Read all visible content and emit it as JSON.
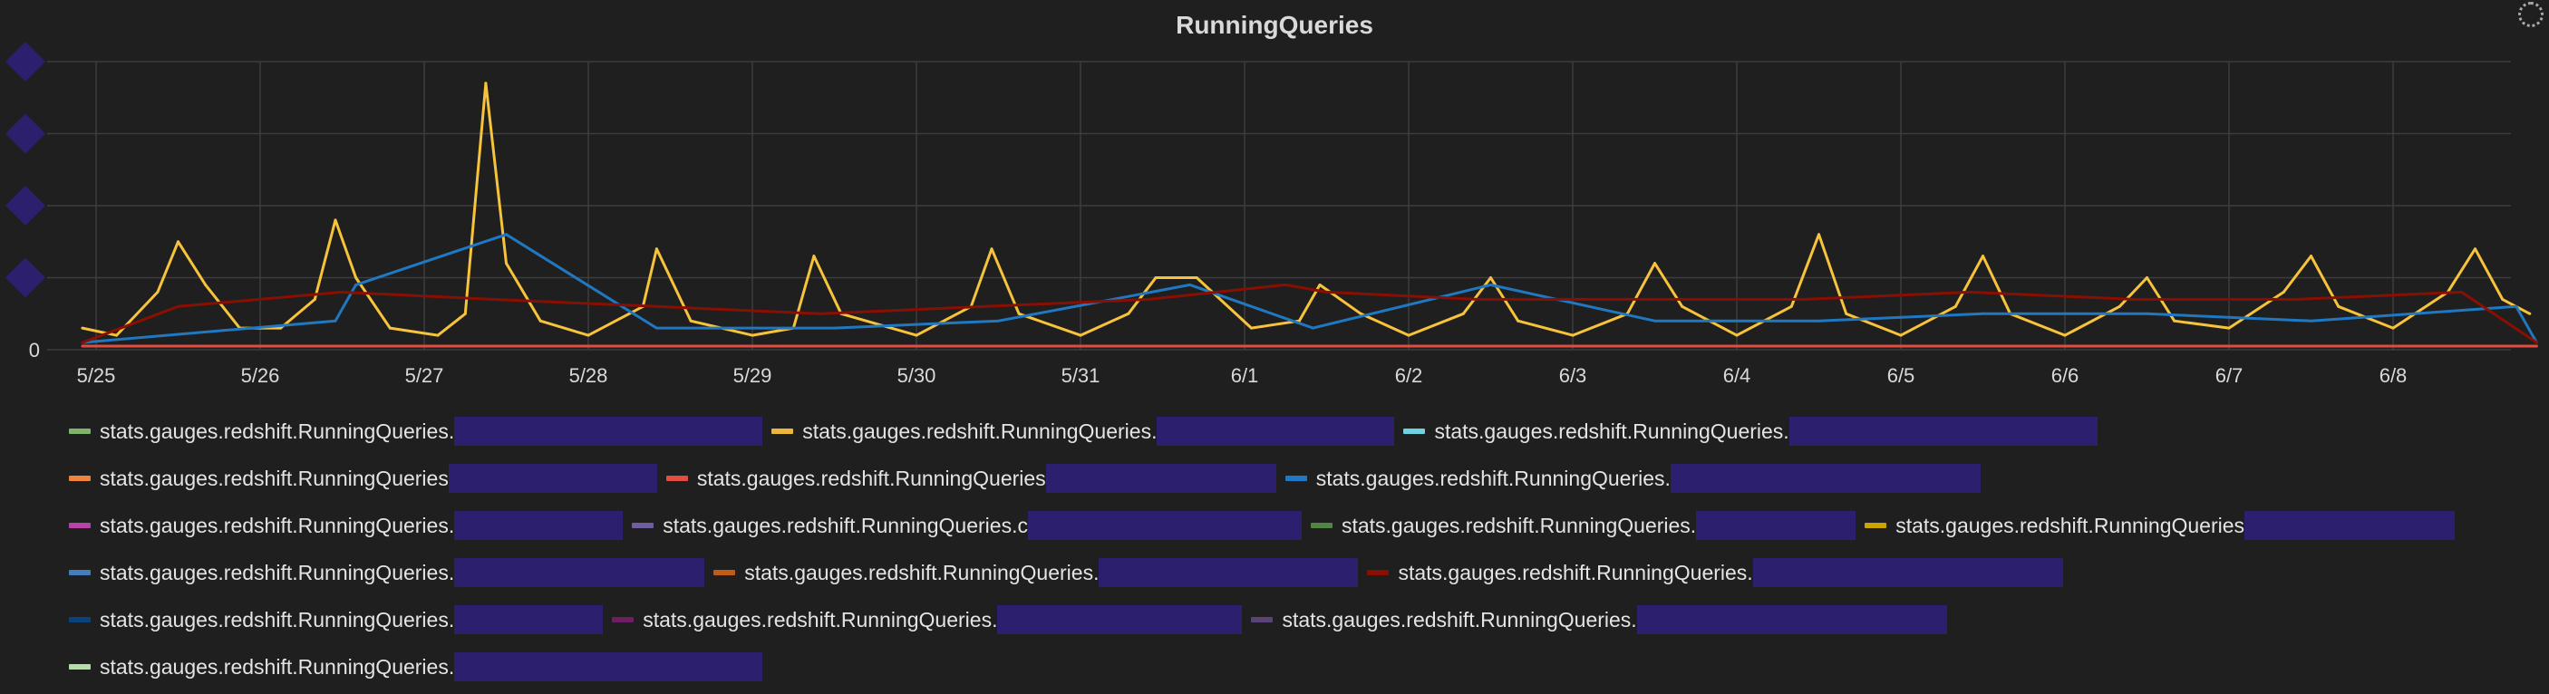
{
  "panel": {
    "title": "RunningQueries"
  },
  "colors": {
    "background": "#1f1f20",
    "grid": "#3d3d3f",
    "redaction": "#2c1f6e"
  },
  "chart_data": {
    "type": "line",
    "title": "RunningQueries",
    "xlabel": "",
    "ylabel": "",
    "x_ticks": [
      "5/25",
      "5/26",
      "5/27",
      "5/28",
      "5/29",
      "5/30",
      "5/31",
      "6/1",
      "6/2",
      "6/3",
      "6/4",
      "6/5",
      "6/6",
      "6/7",
      "6/8"
    ],
    "y_ticks": [
      "0"
    ],
    "ylim": [
      0,
      4
    ],
    "grid": true,
    "legend_position": "bottom",
    "series": [
      {
        "color": "#f7c33b",
        "points": [
          [
            "5/24 22:00",
            0.3
          ],
          [
            "5/25 03:00",
            0.2
          ],
          [
            "5/25 09:00",
            0.8
          ],
          [
            "5/25 12:00",
            1.5
          ],
          [
            "5/25 16:00",
            0.9
          ],
          [
            "5/25 21:00",
            0.3
          ],
          [
            "5/26 03:00",
            0.3
          ],
          [
            "5/26 08:00",
            0.7
          ],
          [
            "5/26 11:00",
            1.8
          ],
          [
            "5/26 14:00",
            1.0
          ],
          [
            "5/26 19:00",
            0.3
          ],
          [
            "5/27 02:00",
            0.2
          ],
          [
            "5/27 06:00",
            0.5
          ],
          [
            "5/27 09:00",
            3.7
          ],
          [
            "5/27 12:00",
            1.2
          ],
          [
            "5/27 17:00",
            0.4
          ],
          [
            "5/28 00:00",
            0.2
          ],
          [
            "5/28 08:00",
            0.6
          ],
          [
            "5/28 10:00",
            1.4
          ],
          [
            "5/28 15:00",
            0.4
          ],
          [
            "5/29 00:00",
            0.2
          ],
          [
            "5/29 06:00",
            0.3
          ],
          [
            "5/29 09:00",
            1.3
          ],
          [
            "5/29 13:00",
            0.5
          ],
          [
            "5/30 00:00",
            0.2
          ],
          [
            "5/30 08:00",
            0.6
          ],
          [
            "5/30 11:00",
            1.4
          ],
          [
            "5/30 15:00",
            0.5
          ],
          [
            "5/31 00:00",
            0.2
          ],
          [
            "5/31 07:00",
            0.5
          ],
          [
            "5/31 11:00",
            1.0
          ],
          [
            "5/31 17:00",
            1.0
          ],
          [
            "6/1 01:00",
            0.3
          ],
          [
            "6/1 08:00",
            0.4
          ],
          [
            "6/1 11:00",
            0.9
          ],
          [
            "6/1 17:00",
            0.5
          ],
          [
            "6/2 00:00",
            0.2
          ],
          [
            "6/2 08:00",
            0.5
          ],
          [
            "6/2 12:00",
            1.0
          ],
          [
            "6/2 16:00",
            0.4
          ],
          [
            "6/3 00:00",
            0.2
          ],
          [
            "6/3 08:00",
            0.5
          ],
          [
            "6/3 12:00",
            1.2
          ],
          [
            "6/3 16:00",
            0.6
          ],
          [
            "6/4 00:00",
            0.2
          ],
          [
            "6/4 08:00",
            0.6
          ],
          [
            "6/4 12:00",
            1.6
          ],
          [
            "6/4 16:00",
            0.5
          ],
          [
            "6/5 00:00",
            0.2
          ],
          [
            "6/5 08:00",
            0.6
          ],
          [
            "6/5 12:00",
            1.3
          ],
          [
            "6/5 16:00",
            0.5
          ],
          [
            "6/6 00:00",
            0.2
          ],
          [
            "6/6 08:00",
            0.6
          ],
          [
            "6/6 12:00",
            1.0
          ],
          [
            "6/6 16:00",
            0.4
          ],
          [
            "6/7 00:00",
            0.3
          ],
          [
            "6/7 08:00",
            0.8
          ],
          [
            "6/7 12:00",
            1.3
          ],
          [
            "6/7 16:00",
            0.6
          ],
          [
            "6/8 00:00",
            0.3
          ],
          [
            "6/8 08:00",
            0.8
          ],
          [
            "6/8 12:00",
            1.4
          ],
          [
            "6/8 16:00",
            0.7
          ],
          [
            "6/8 20:00",
            0.5
          ]
        ]
      },
      {
        "color": "#1f78c1",
        "points": [
          [
            "5/24 22:00",
            0.1
          ],
          [
            "5/26 11:00",
            0.4
          ],
          [
            "5/26 14:00",
            0.9
          ],
          [
            "5/27 12:00",
            1.6
          ],
          [
            "5/28 10:00",
            0.3
          ],
          [
            "5/29 12:00",
            0.3
          ],
          [
            "5/30 12:00",
            0.4
          ],
          [
            "5/31 16:00",
            0.9
          ],
          [
            "6/1 10:00",
            0.3
          ],
          [
            "6/2 12:00",
            0.9
          ],
          [
            "6/3 12:00",
            0.4
          ],
          [
            "6/4 12:00",
            0.4
          ],
          [
            "6/5 12:00",
            0.5
          ],
          [
            "6/6 12:00",
            0.5
          ],
          [
            "6/7 12:00",
            0.4
          ],
          [
            "6/8 18:00",
            0.6
          ],
          [
            "6/8 21:00",
            0.1
          ]
        ]
      },
      {
        "color": "#890f02",
        "points": [
          [
            "5/24 22:00",
            0.1
          ],
          [
            "5/25 12:00",
            0.6
          ],
          [
            "5/26 12:00",
            0.8
          ],
          [
            "5/27 10:00",
            0.7
          ],
          [
            "5/28 10:00",
            0.6
          ],
          [
            "5/29 10:00",
            0.5
          ],
          [
            "5/30 10:00",
            0.6
          ],
          [
            "5/31 10:00",
            0.7
          ],
          [
            "6/1 06:00",
            0.9
          ],
          [
            "6/1 12:00",
            0.8
          ],
          [
            "6/2 10:00",
            0.7
          ],
          [
            "6/3 10:00",
            0.7
          ],
          [
            "6/4 10:00",
            0.7
          ],
          [
            "6/5 10:00",
            0.8
          ],
          [
            "6/6 10:00",
            0.7
          ],
          [
            "6/7 10:00",
            0.7
          ],
          [
            "6/8 10:00",
            0.8
          ],
          [
            "6/8 21:00",
            0.1
          ]
        ]
      },
      {
        "color": "#e24d42",
        "points": [
          [
            "5/24 22:00",
            0.05
          ],
          [
            "6/8 21:00",
            0.05
          ]
        ]
      }
    ]
  },
  "legend": {
    "rows": [
      [
        {
          "color": "#7eb26d",
          "label": "stats.gauges.redshift.RunningQueries."
        },
        {
          "color": "#eab839",
          "label": "stats.gauges.redshift.RunningQueries."
        },
        {
          "color": "#6ed0e0",
          "label": "stats.gauges.redshift.RunningQueries."
        }
      ],
      [
        {
          "color": "#ef843c",
          "label": "stats.gauges.redshift.RunningQueries"
        },
        {
          "color": "#e24d42",
          "label": "stats.gauges.redshift.RunningQueries"
        },
        {
          "color": "#1f78c1",
          "label": "stats.gauges.redshift.RunningQueries."
        }
      ],
      [
        {
          "color": "#ba43a9",
          "label": "stats.gauges.redshift.RunningQueries."
        },
        {
          "color": "#705da0",
          "label": "stats.gauges.redshift.RunningQueries.c"
        },
        {
          "color": "#508642",
          "label": "stats.gauges.redshift.RunningQueries."
        },
        {
          "color": "#cca300",
          "label": "stats.gauges.redshift.RunningQueries"
        }
      ],
      [
        {
          "color": "#447ebc",
          "label": "stats.gauges.redshift.RunningQueries."
        },
        {
          "color": "#c15c17",
          "label": "stats.gauges.redshift.RunningQueries."
        },
        {
          "color": "#890f02",
          "label": "stats.gauges.redshift.RunningQueries."
        }
      ],
      [
        {
          "color": "#0a437c",
          "label": "stats.gauges.redshift.RunningQueries."
        },
        {
          "color": "#6d1f62",
          "label": "stats.gauges.redshift.RunningQueries."
        },
        {
          "color": "#584477",
          "label": "stats.gauges.redshift.RunningQueries."
        }
      ],
      [
        {
          "color": "#b7dbab",
          "label": "stats.gauges.redshift.RunningQueries."
        }
      ]
    ]
  }
}
